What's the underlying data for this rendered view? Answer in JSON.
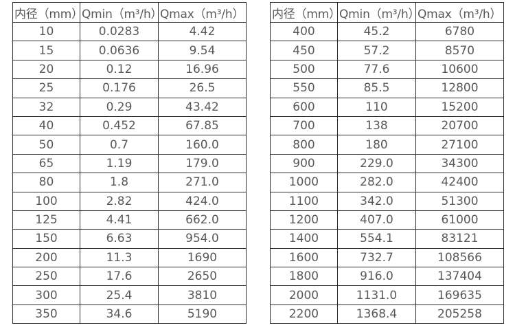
{
  "colors": {
    "border": "#2e2e2e",
    "text": "#595959",
    "background": "#ffffff"
  },
  "tables": [
    {
      "name": "small-diameters",
      "headers": [
        "内径（mm）",
        "Qmin（m³/h）",
        "Qmax（m³/h）"
      ],
      "rows": [
        [
          "10",
          "0.0283",
          "4.42"
        ],
        [
          "15",
          "0.0636",
          "9.54"
        ],
        [
          "20",
          "0.12",
          "16.96"
        ],
        [
          "25",
          "0.176",
          "26.5"
        ],
        [
          "32",
          "0.29",
          "43.42"
        ],
        [
          "40",
          "0.452",
          "67.85"
        ],
        [
          "50",
          "0.7",
          "160.0"
        ],
        [
          "65",
          "1.19",
          "179.0"
        ],
        [
          "80",
          "1.8",
          "271.0"
        ],
        [
          "100",
          "2.82",
          "424.0"
        ],
        [
          "125",
          "4.41",
          "662.0"
        ],
        [
          "150",
          "6.63",
          "954.0"
        ],
        [
          "200",
          "11.3",
          "1690"
        ],
        [
          "250",
          "17.6",
          "2650"
        ],
        [
          "300",
          "25.4",
          "3810"
        ],
        [
          "350",
          "34.6",
          "5190"
        ]
      ]
    },
    {
      "name": "large-diameters",
      "headers": [
        "内径（mm）",
        "Qmin（m³/h）",
        "Qmax（m³/h）"
      ],
      "rows": [
        [
          "400",
          "45.2",
          "6780"
        ],
        [
          "450",
          "57.2",
          "8570"
        ],
        [
          "500",
          "77.6",
          "10600"
        ],
        [
          "550",
          "85.5",
          "12800"
        ],
        [
          "600",
          "110",
          "15200"
        ],
        [
          "700",
          "138",
          "20700"
        ],
        [
          "800",
          "180",
          "27100"
        ],
        [
          "900",
          "229.0",
          "34300"
        ],
        [
          "1000",
          "282.0",
          "42400"
        ],
        [
          "1100",
          "342.0",
          "51300"
        ],
        [
          "1200",
          "407.0",
          "61000"
        ],
        [
          "1400",
          "554.1",
          "83121"
        ],
        [
          "1600",
          "732.7",
          "108566"
        ],
        [
          "1800",
          "916.0",
          "137404"
        ],
        [
          "2000",
          "1131.0",
          "169635"
        ],
        [
          "2200",
          "1368.4",
          "205258"
        ]
      ]
    }
  ]
}
